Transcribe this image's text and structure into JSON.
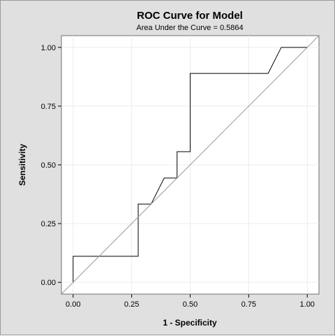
{
  "chart_data": {
    "type": "line",
    "title": "ROC Curve for Model",
    "subtitle": "Area Under the Curve = 0.5864",
    "xlabel": "1 - Specificity",
    "ylabel": "Sensitivity",
    "xlim": [
      -0.05,
      1.05
    ],
    "ylim": [
      -0.05,
      1.05
    ],
    "xticks": [
      0.0,
      0.25,
      0.5,
      0.75,
      1.0
    ],
    "yticks": [
      0.0,
      0.25,
      0.5,
      0.75,
      1.0
    ],
    "xtick_labels": [
      "0.00",
      "0.25",
      "0.50",
      "0.75",
      "1.00"
    ],
    "ytick_labels": [
      "0.00",
      "0.25",
      "0.50",
      "0.75",
      "1.00"
    ],
    "grid": true,
    "series": [
      {
        "color": "#000000",
        "x": [
          0.0,
          0.0,
          0.278,
          0.278,
          0.333,
          0.389,
          0.444,
          0.444,
          0.5,
          0.5,
          0.833,
          0.889,
          1.0
        ],
        "y": [
          0.0,
          0.111,
          0.111,
          0.333,
          0.333,
          0.444,
          0.444,
          0.556,
          0.556,
          0.889,
          0.889,
          1.0,
          1.0
        ]
      },
      {
        "color": "#999999",
        "x": [
          -0.05,
          1.05
        ],
        "y": [
          -0.05,
          1.05
        ]
      }
    ],
    "colors": {
      "background": "#e0e0e0",
      "plot_area": "#ffffff",
      "grid": "#ececec",
      "curve": "#000000",
      "reference": "#999999"
    }
  }
}
